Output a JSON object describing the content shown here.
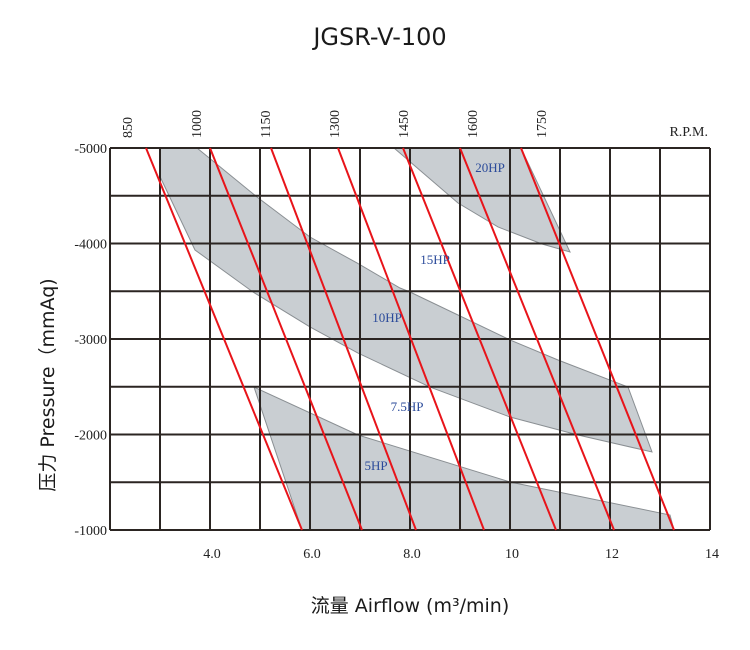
{
  "chart_data": {
    "type": "line",
    "title": "JGSR-V-100",
    "xlabel": "流量 Airflow (m³/min)",
    "ylabel": "压力 Pressure（mmAq)",
    "xlim": [
      2,
      14
    ],
    "ylim": [
      -5000,
      -1000
    ],
    "grid": true,
    "x_ticks": [
      "4.0",
      "6.0",
      "8.0",
      "10",
      "12",
      "14"
    ],
    "x_tick_values": [
      4,
      6,
      8,
      10,
      12,
      14
    ],
    "y_ticks": [
      "-5000",
      "-4000",
      "-3000",
      "-2000",
      "-1000"
    ],
    "y_tick_values": [
      -5000,
      -4000,
      -3000,
      -2000,
      -1000
    ],
    "rpm_axis_label": "R.P.M.",
    "colors": {
      "rpm_line": "#e8141a",
      "band_fill": "#c9ced2",
      "band_edge": "#8a8f93",
      "grid": "#2b2522",
      "hp_label": "#2a4a9a"
    },
    "rpm_series": [
      {
        "name": "850",
        "points": [
          [
            2.72,
            -5000
          ],
          [
            5.84,
            -1000
          ]
        ]
      },
      {
        "name": "1000",
        "points": [
          [
            4.0,
            -5000
          ],
          [
            7.04,
            -1000
          ]
        ]
      },
      {
        "name": "1150",
        "points": [
          [
            5.22,
            -5000
          ],
          [
            8.12,
            -1000
          ]
        ]
      },
      {
        "name": "1300",
        "points": [
          [
            6.56,
            -5000
          ],
          [
            9.48,
            -1000
          ]
        ]
      },
      {
        "name": "1450",
        "points": [
          [
            7.86,
            -5000
          ],
          [
            10.92,
            -1000
          ]
        ]
      },
      {
        "name": "1600",
        "points": [
          [
            9.0,
            -5000
          ],
          [
            12.08,
            -1000
          ]
        ]
      },
      {
        "name": "1750",
        "points": [
          [
            10.22,
            -5000
          ],
          [
            13.28,
            -1000
          ]
        ]
      }
    ],
    "hp_bands": [
      {
        "label": "20HP",
        "label_at": [
          9.6,
          -4750
        ],
        "polygon": [
          [
            7.68,
            -5000
          ],
          [
            8.96,
            -4424
          ],
          [
            9.76,
            -4173
          ],
          [
            10.64,
            -3995
          ],
          [
            11.2,
            -3911
          ],
          [
            10.22,
            -5000
          ]
        ]
      },
      {
        "label": "10HP",
        "label_at": [
          7.54,
          -3180
        ],
        "polygon": [
          [
            3.0,
            -5000
          ],
          [
            3.74,
            -5000
          ],
          [
            4.94,
            -4487
          ],
          [
            6.0,
            -4068
          ],
          [
            6.94,
            -3796
          ],
          [
            7.8,
            -3534
          ],
          [
            8.0,
            -3492
          ],
          [
            10.0,
            -2990
          ],
          [
            10.96,
            -2780
          ],
          [
            12.36,
            -2497
          ],
          [
            12.84,
            -1817
          ],
          [
            11.36,
            -1995
          ],
          [
            10.0,
            -2183
          ],
          [
            8.4,
            -2497
          ],
          [
            6.96,
            -2853
          ],
          [
            6.0,
            -3126
          ],
          [
            4.86,
            -3492
          ],
          [
            3.7,
            -3932
          ],
          [
            3.0,
            -4700
          ]
        ]
      },
      {
        "label": "5HP",
        "label_at": [
          7.32,
          -1630
        ],
        "polygon": [
          [
            4.88,
            -2497
          ],
          [
            6.96,
            -1995
          ],
          [
            10.0,
            -1503
          ],
          [
            13.2,
            -1157
          ],
          [
            13.28,
            -1000
          ],
          [
            5.84,
            -1000
          ]
        ]
      }
    ],
    "annotations": [
      {
        "text": "15HP",
        "at": [
          8.5,
          -3785
        ]
      },
      {
        "text": "7.5HP",
        "at": [
          7.94,
          -2246
        ]
      }
    ]
  }
}
